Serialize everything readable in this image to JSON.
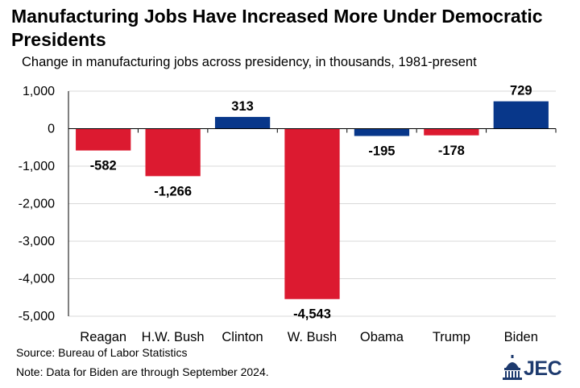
{
  "title": "Manufacturing Jobs Have Increased More Under Democratic Presidents",
  "subtitle": "Change in manufacturing jobs across presidency, in thousands, 1981-present",
  "source": "Source: Bureau of Labor Statistics",
  "note": "Note: Data for Biden are through September 2024.",
  "logo": {
    "text": "JEC",
    "icon": "capitol-dome-icon"
  },
  "colors": {
    "republican": "#dc1a30",
    "democratic": "#08378a",
    "gridline": "#d9d9d9",
    "axis": "#000000"
  },
  "chart_data": {
    "type": "bar",
    "categories": [
      "Reagan",
      "H.W. Bush",
      "Clinton",
      "W. Bush",
      "Obama",
      "Trump",
      "Biden"
    ],
    "values": [
      -582,
      -1266,
      313,
      -4543,
      -195,
      -178,
      729
    ],
    "value_labels": [
      "-582",
      "-1,266",
      "313",
      "-4,543",
      "-195",
      "-178",
      "729"
    ],
    "party": [
      "republican",
      "republican",
      "democratic",
      "republican",
      "democratic",
      "republican",
      "democratic"
    ],
    "ylim": [
      -5000,
      1000
    ],
    "yticks": [
      1000,
      0,
      -1000,
      -2000,
      -3000,
      -4000,
      -5000
    ],
    "ytick_labels": [
      "1,000",
      "0",
      "-1,000",
      "-2,000",
      "-3,000",
      "-4,000",
      "-5,000"
    ],
    "grid": true,
    "legend": "none"
  }
}
